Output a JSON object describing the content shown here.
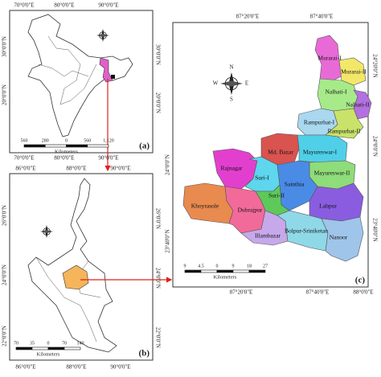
{
  "panel_a": {
    "label": "(a)",
    "top_ticks": [
      "70°0'0\"E",
      "80°0'0\"E",
      "90°0'0\"E"
    ],
    "bottom_ticks": [
      "70°0'0\"E",
      "80°0'0\"E",
      "90°0'0\"E"
    ],
    "left_ticks": [
      "30°0'0\"N",
      "20°0'0\"N"
    ],
    "right_ticks": [
      "30°0'0\"N",
      "20°0'0\"N"
    ],
    "scale": {
      "ticks": [
        "560",
        "280",
        "0",
        "560",
        "1,120"
      ],
      "unit": "Kilometers"
    }
  },
  "panel_b": {
    "label": "(b)",
    "top_ticks": [
      "86°0'0\"E",
      "88°0'0\"E",
      "90°0'0\"E"
    ],
    "bottom_ticks": [
      "86°0'0\"E",
      "88°0'0\"E",
      "90°0'0\"E"
    ],
    "left_ticks": [
      "26°0'0\"N",
      "24°0'0\"N",
      "22°0'0\"N"
    ],
    "right_ticks": [
      "26°0'0\"N",
      "24°0'0\"N",
      "22°0'0\"N"
    ],
    "scale": {
      "ticks": [
        "70",
        "35",
        "0",
        "70",
        "140"
      ],
      "unit": "Kilometers"
    }
  },
  "panel_c": {
    "label": "(c)",
    "top_ticks": [
      "87°20'0\"E",
      "87°40'0\"E"
    ],
    "bottom_ticks": [
      "87°20'0\"E",
      "87°40'0\"E",
      "88°0'0\"E"
    ],
    "left_ticks": [
      "24°0'0\"N",
      "23°40'0\"N"
    ],
    "right_ticks": [
      "24°20'0\"N",
      "24°0'0\"N",
      "23°40'0\"N"
    ],
    "scale": {
      "ticks": [
        "9",
        "4.5",
        "0",
        "9",
        "18",
        "27"
      ],
      "unit": "Kilometers"
    },
    "compass": {
      "n": "N",
      "s": "S",
      "e": "E",
      "w": "W"
    },
    "regions": [
      "Murarai-I",
      "Murarai-II",
      "Nalhati-I",
      "Nalhati-II",
      "Rampurhat-I",
      "Rampurhat-II",
      "Md. Bazar",
      "Mayureswar-I",
      "Mayureswar-II",
      "Rajnagar",
      "Suri-I",
      "Sainthia",
      "Suri-II",
      "Labpur",
      "Khoyrasole",
      "Dubrajpur",
      "Illambazar",
      "Bolpur-Sriniketan",
      "Nanoor"
    ]
  }
}
